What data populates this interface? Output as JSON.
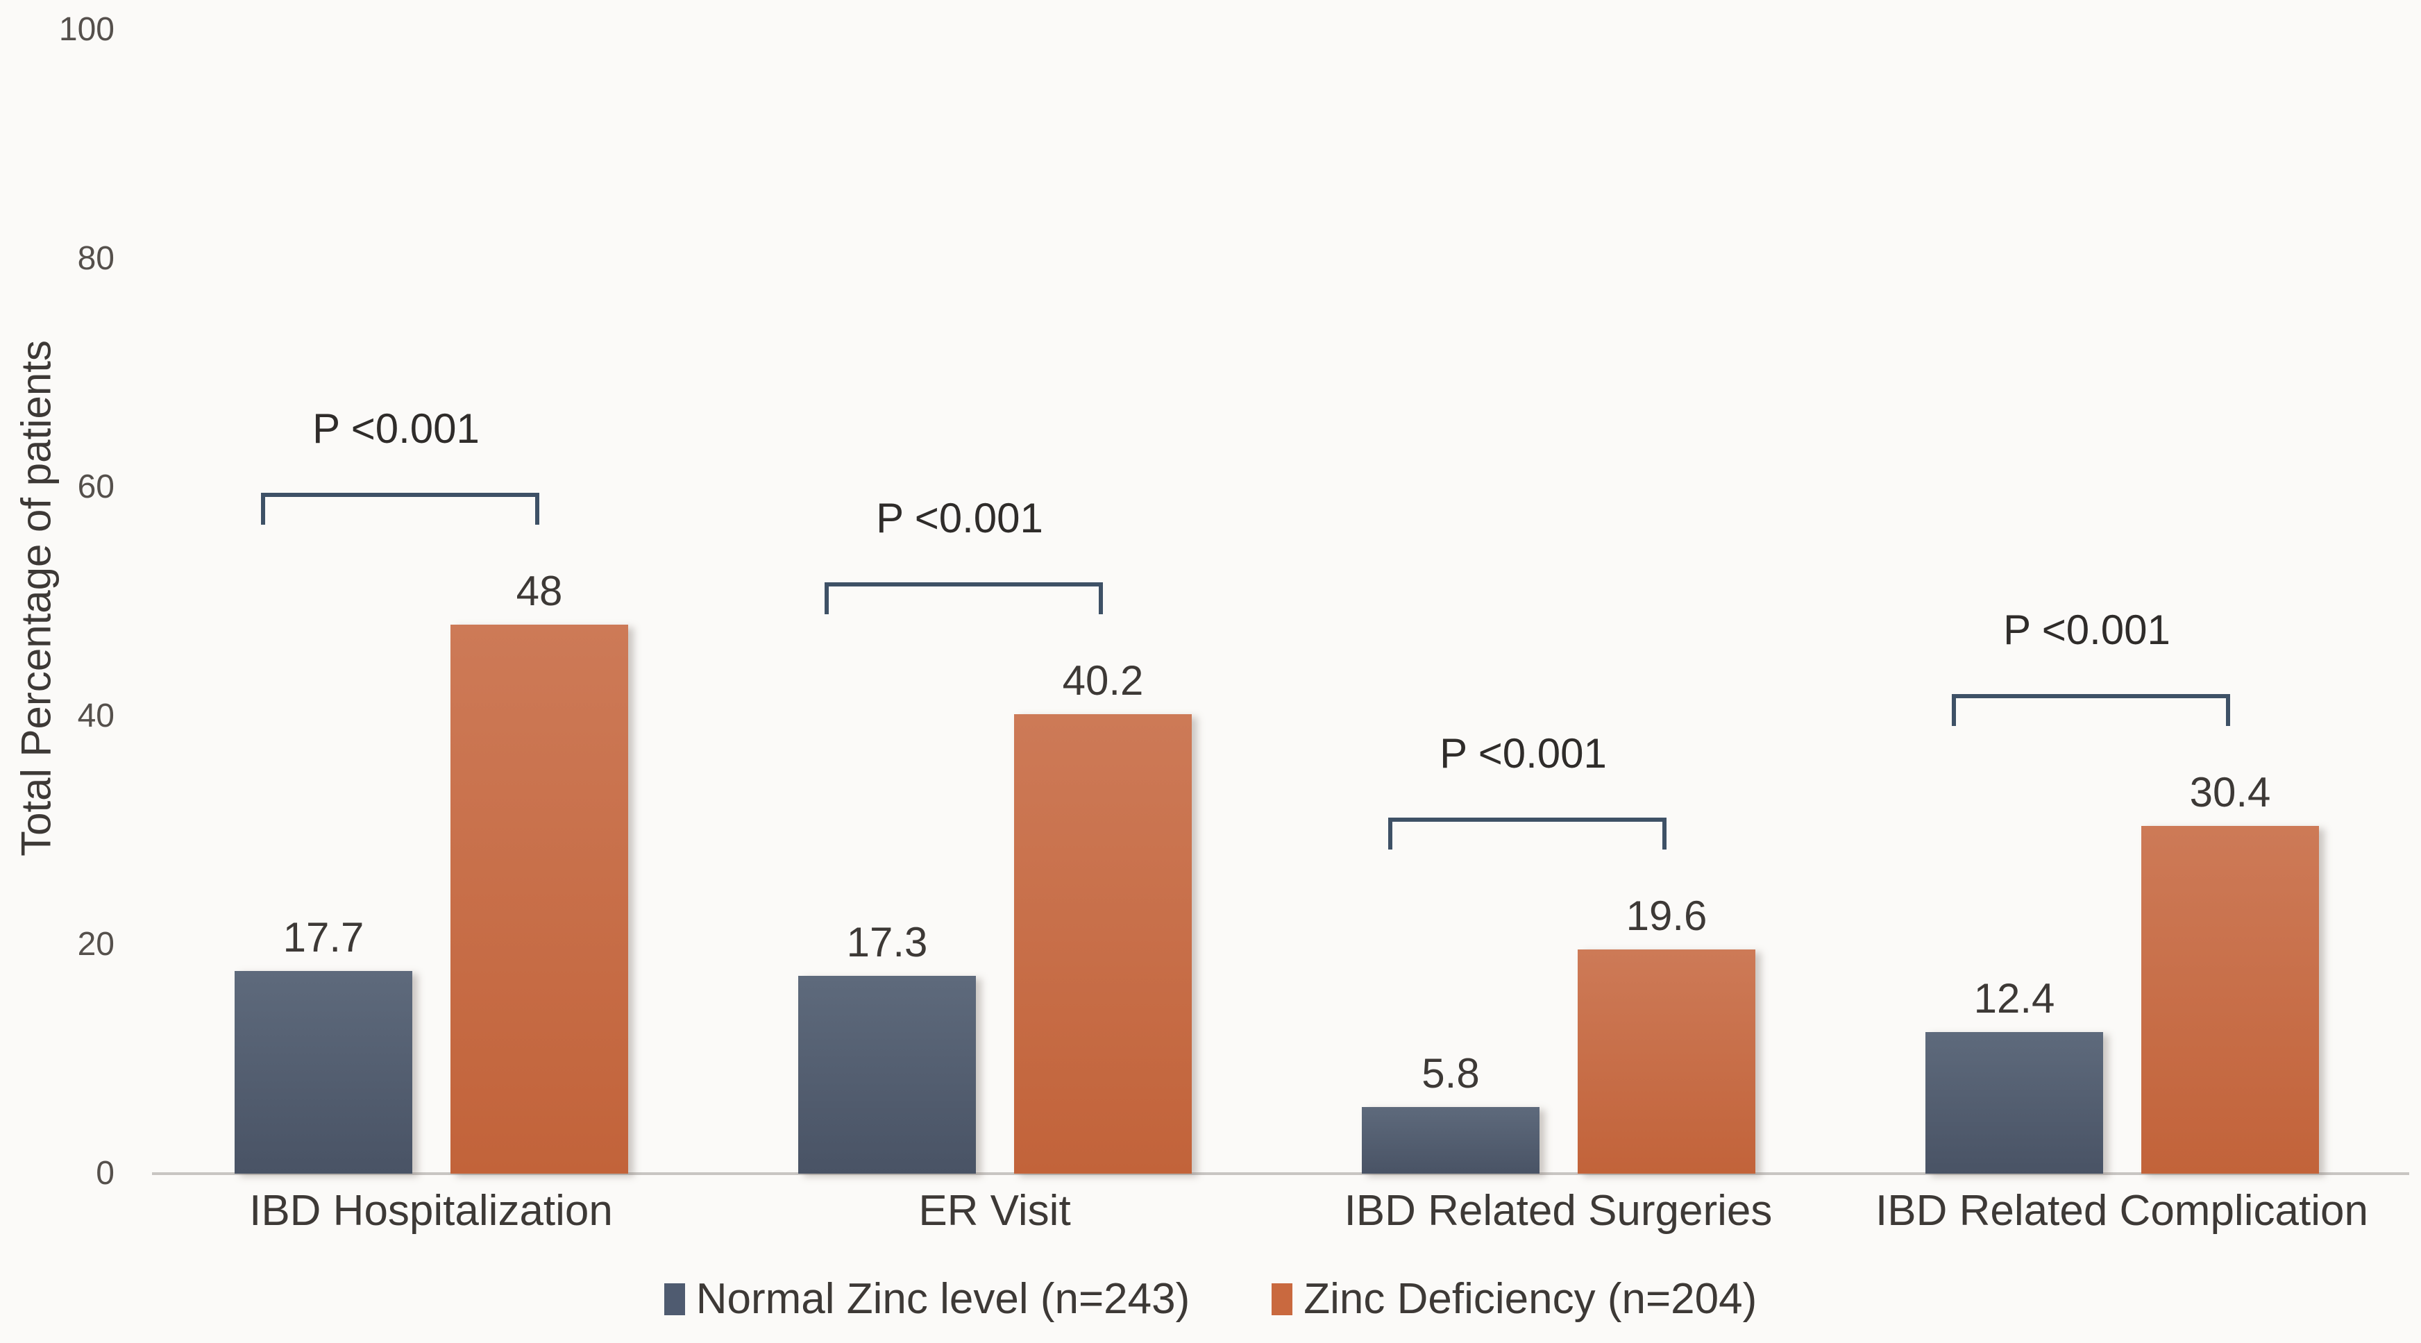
{
  "chart_data": {
    "type": "bar",
    "title": "",
    "ylabel": "Total Percentage of patients",
    "xlabel": "",
    "ylim": [
      0,
      100
    ],
    "yticks": [
      0,
      20,
      40,
      60,
      80,
      100
    ],
    "grid": false,
    "legend_position": "bottom-center",
    "categories": [
      "IBD Hospitalization",
      "ER Visit",
      "IBD Related Surgeries",
      "IBD Related Complication"
    ],
    "series": [
      {
        "name": "Normal Zinc level (n=243)",
        "color": "#4f5b70",
        "color_top": "#5e6a7c",
        "color_bottom": "#495365",
        "values": [
          17.7,
          17.3,
          5.8,
          12.4
        ]
      },
      {
        "name": "Zinc Deficiency (n=204)",
        "color": "#c9693f",
        "color_top": "#cd7a57",
        "color_bottom": "#c2633a",
        "values": [
          48,
          40.2,
          19.6,
          30.4
        ]
      }
    ],
    "annotations": [
      {
        "group": "IBD Hospitalization",
        "label": "P <0.001"
      },
      {
        "group": "ER Visit",
        "label": "P <0.001"
      },
      {
        "group": "IBD Related Surgeries",
        "label": "P <0.001"
      },
      {
        "group": "IBD Related Complication",
        "label": "P <0.001"
      }
    ]
  },
  "styles": {
    "bracket_color": "#3e5166",
    "axis_line_color": "#c8c5c2",
    "text_color": "#3d3936",
    "tick_color": "#55504c",
    "background": "#fbfaf8"
  }
}
